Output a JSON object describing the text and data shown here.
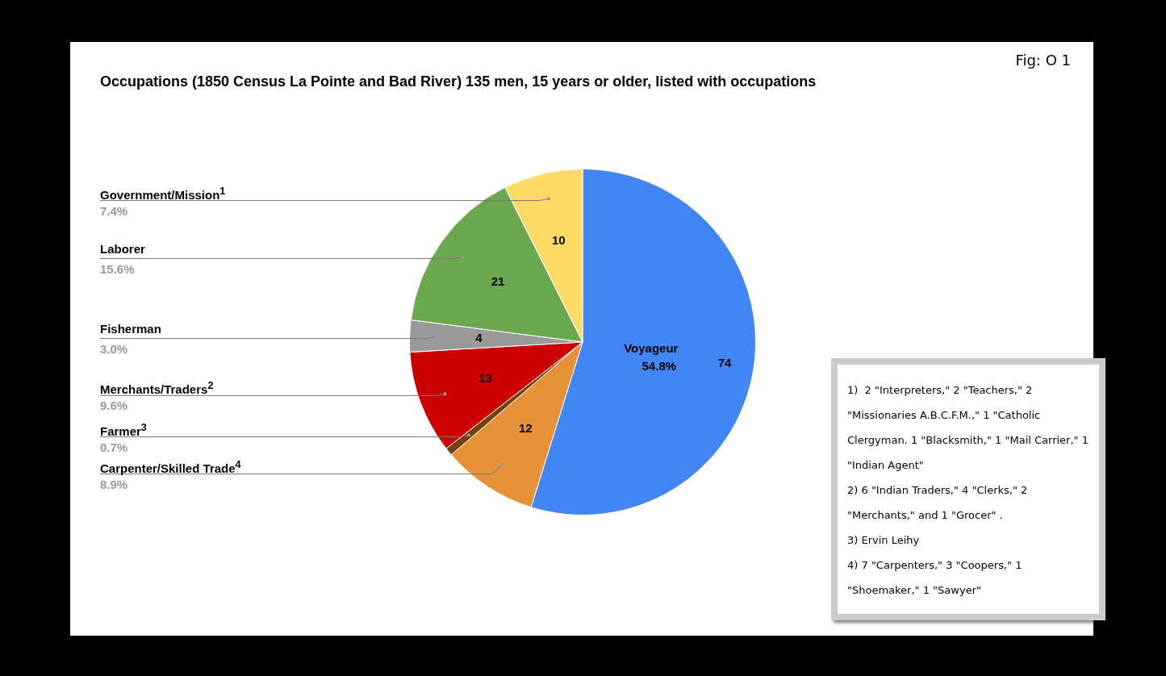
{
  "chart_data": {
    "type": "pie",
    "title": "Occupations (1850 Census La Pointe and Bad River) 135 men, 15 years or older, listed with occupations",
    "categories": [
      "Voyageur",
      "Carpenter/Skilled Trade$^{4}$",
      "Farmer$^{3}$",
      "Merchants/Traders$^{2}$",
      "Fisherman",
      "Laborer",
      "Government/Mission$^{1}$"
    ],
    "values": [
      74,
      12,
      1,
      13,
      4,
      21,
      10
    ],
    "value_labels": [
      "74",
      "12",
      null,
      "13",
      "4",
      "21",
      "10"
    ],
    "colors": [
      "#4285f4",
      "#e69138",
      "#783f04",
      "#cc0000",
      "#999999",
      "#6aa84f",
      "#ffd966"
    ],
    "annotations": [
      "Fig: O 1",
      "1)  2 \"Interpreters,\" 2 \"Teachers,\" 2 \"Missionaries A.B.C.F.M.,\" 1 \"Catholic Clergyman. 1 \"Blacksmith,\" 1 \"Mail Carrier,\" 1 \"Indian Agent\"",
      "2) 6 \"Indian Traders,\" 4 \"Clerks,\" 2 \"Merchants,\" and 1 \"Grocer\" .",
      "3) Ervin Leihy",
      "4) 7 \"Carpenters,\" 3 \"Coopers,\" 1 \"Shoemaker,\" 1 \"Sawyer\"",
      {
        "text": "54.8%",
        "x": "Voyageur"
      },
      {
        "text": "8.9%",
        "x": "Carpenter/Skilled Trade$^{4}$"
      },
      {
        "text": "0.7%",
        "x": "Farmer$^{3}$"
      },
      {
        "text": "9.6%",
        "x": "Merchants/Traders$^{2}$"
      },
      {
        "text": "3.0%",
        "x": "Fisherman"
      },
      {
        "text": "15.6%",
        "x": "Laborer"
      },
      {
        "text": "7.4%",
        "x": "Government/Mission$^{1}$"
      }
    ]
  }
}
